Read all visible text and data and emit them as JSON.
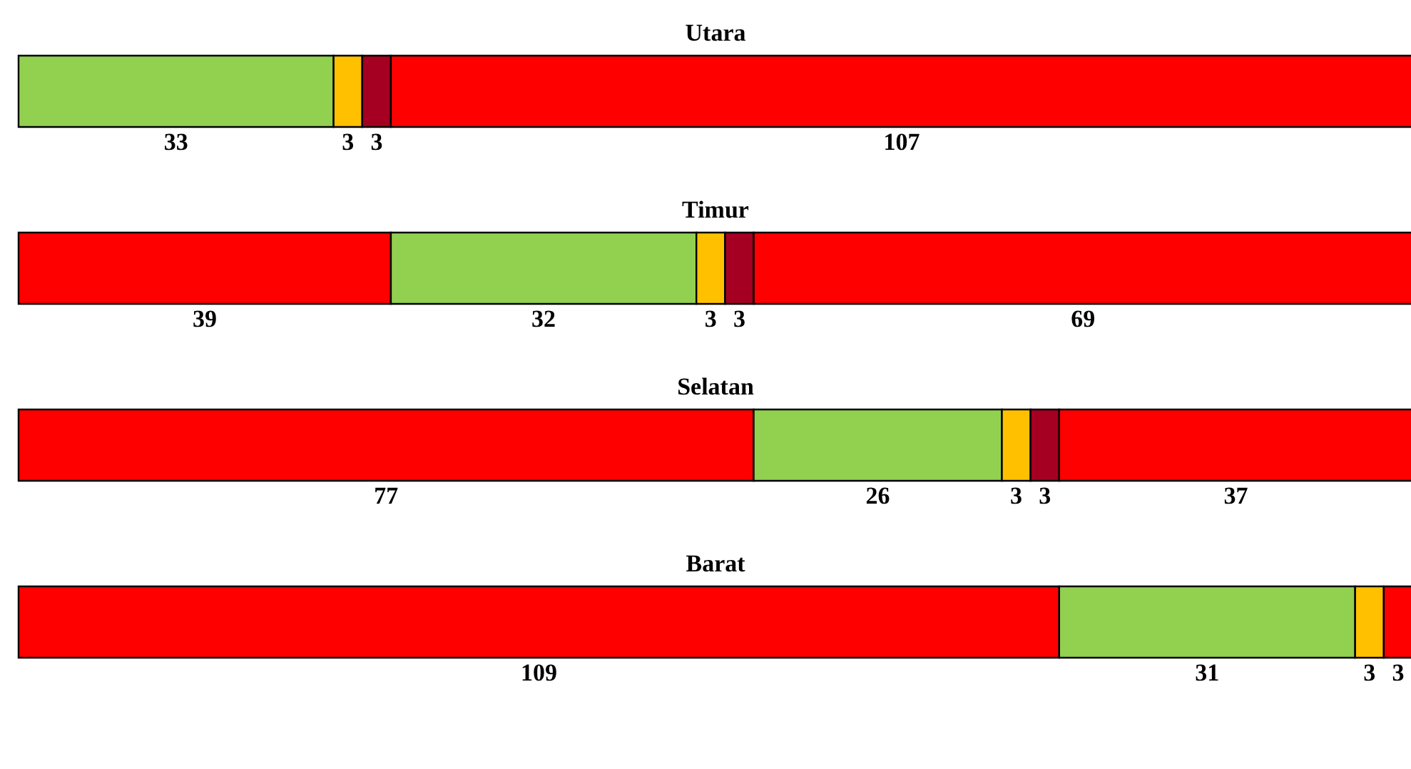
{
  "chart_data": [
    {
      "type": "bar",
      "orientation": "horizontal",
      "stacked": true,
      "data_labels": true,
      "title": "Utara",
      "categories": [
        null
      ],
      "series": [
        {
          "color": "#92d050",
          "values": [
            33
          ]
        },
        {
          "color": "#ffc000",
          "values": [
            3
          ]
        },
        {
          "color": "#a50021",
          "values": [
            3
          ]
        },
        {
          "color": "#ff0000",
          "values": [
            107
          ]
        }
      ]
    },
    {
      "type": "bar",
      "orientation": "horizontal",
      "stacked": true,
      "data_labels": true,
      "title": "Timur",
      "categories": [
        null
      ],
      "series": [
        {
          "color": "#ff0000",
          "values": [
            39
          ]
        },
        {
          "color": "#92d050",
          "values": [
            32
          ]
        },
        {
          "color": "#ffc000",
          "values": [
            3
          ]
        },
        {
          "color": "#a50021",
          "values": [
            3
          ]
        },
        {
          "color": "#fe0000",
          "values": [
            69
          ]
        }
      ]
    },
    {
      "type": "bar",
      "orientation": "horizontal",
      "stacked": true,
      "data_labels": true,
      "title": "Selatan",
      "categories": [
        null
      ],
      "series": [
        {
          "color": "#ff0000",
          "values": [
            77
          ]
        },
        {
          "color": "#92d050",
          "values": [
            26
          ]
        },
        {
          "color": "#ffc000",
          "values": [
            3
          ]
        },
        {
          "color": "#a50021",
          "values": [
            3
          ]
        },
        {
          "color": "#fe0000",
          "values": [
            37
          ]
        }
      ]
    },
    {
      "type": "bar",
      "orientation": "horizontal",
      "stacked": true,
      "data_labels": true,
      "title": "Barat",
      "categories": [
        null
      ],
      "series": [
        {
          "color": "#ff0000",
          "values": [
            109
          ]
        },
        {
          "color": "#92d050",
          "values": [
            31
          ]
        },
        {
          "color": "#ffc000",
          "values": [
            3
          ]
        },
        {
          "color": "#fe0000",
          "values": [
            3
          ]
        }
      ]
    }
  ]
}
